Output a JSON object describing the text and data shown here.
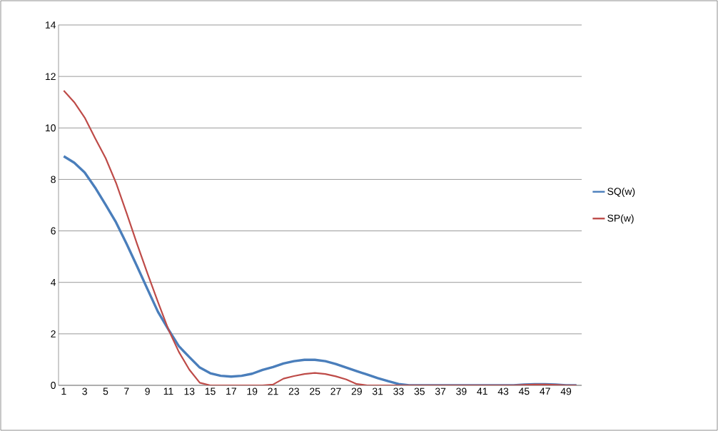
{
  "chart_data": {
    "type": "line",
    "categories": [
      "1",
      null,
      "3",
      null,
      "5",
      null,
      "7",
      null,
      "9",
      null,
      "11",
      null,
      "13",
      null,
      "15",
      null,
      "17",
      null,
      "19",
      null,
      "21",
      null,
      "23",
      null,
      "25",
      null,
      "27",
      null,
      "29",
      null,
      "31",
      null,
      "33",
      null,
      "35",
      null,
      "37",
      null,
      "39",
      null,
      "41",
      null,
      "43",
      null,
      "45",
      null,
      "47",
      null,
      "49",
      null
    ],
    "series": [
      {
        "name": "SQ(w)",
        "color": "#4a7ebb",
        "values": [
          8.9,
          8.65,
          8.27,
          7.68,
          7.02,
          6.33,
          5.5,
          4.63,
          3.74,
          2.86,
          2.17,
          1.52,
          1.1,
          0.69,
          0.47,
          0.37,
          0.34,
          0.37,
          0.45,
          0.6,
          0.71,
          0.85,
          0.94,
          0.99,
          0.99,
          0.94,
          0.83,
          0.69,
          0.55,
          0.42,
          0.28,
          0.16,
          0.05,
          0,
          0,
          0,
          0,
          0,
          0,
          0,
          0,
          0,
          0,
          0,
          0.03,
          0.04,
          0.04,
          0.03,
          0,
          0
        ]
      },
      {
        "name": "SP(w)",
        "color": "#be4b48",
        "values": [
          11.45,
          11.0,
          10.4,
          9.6,
          8.83,
          7.86,
          6.7,
          5.5,
          4.35,
          3.24,
          2.17,
          1.3,
          0.61,
          0.1,
          0,
          0,
          0,
          0,
          0,
          0,
          0.03,
          0.26,
          0.36,
          0.44,
          0.48,
          0.44,
          0.35,
          0.23,
          0.05,
          0,
          0,
          0,
          0,
          0,
          0,
          0,
          0,
          0,
          0,
          0,
          0,
          0,
          0,
          0,
          0.02,
          0.03,
          0.03,
          0.02,
          0,
          0
        ]
      }
    ],
    "ylim": [
      0,
      14
    ],
    "yticks": [
      0,
      2,
      4,
      6,
      8,
      10,
      12,
      14
    ],
    "grid": "y",
    "legend": "right"
  }
}
